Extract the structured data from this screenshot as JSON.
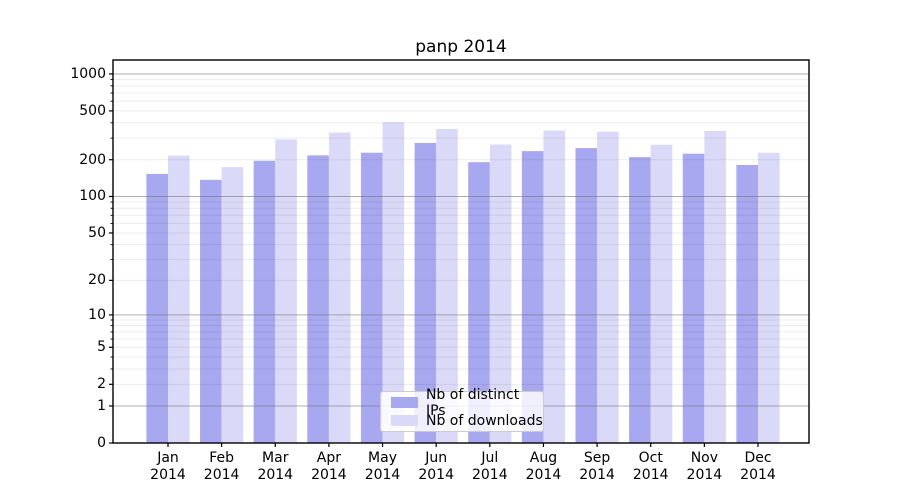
{
  "title": "panp 2014",
  "legend": {
    "items": [
      {
        "label": "Nb of distinct IPs"
      },
      {
        "label": "Nb of downloads"
      }
    ]
  },
  "colors": {
    "distinct_ips_bar": "#a8a8f0",
    "downloads_bar": "#dadaf8",
    "major_grid": "#808080",
    "minor_grid": "#e9e9e9",
    "axis": "#000000"
  },
  "chart_data": {
    "type": "bar",
    "title": "panp 2014",
    "categories": [
      "Jan 2014",
      "Feb 2014",
      "Mar 2014",
      "Apr 2014",
      "May 2014",
      "Jun 2014",
      "Jul 2014",
      "Aug 2014",
      "Sep 2014",
      "Oct 2014",
      "Nov 2014",
      "Dec 2014"
    ],
    "series": [
      {
        "name": "Nb of distinct IPs",
        "color": "#a8a8f0",
        "values": [
          153,
          137,
          196,
          217,
          228,
          274,
          191,
          235,
          249,
          210,
          224,
          181
        ]
      },
      {
        "name": "Nb of downloads",
        "color": "#dadaf8",
        "values": [
          216,
          174,
          293,
          333,
          405,
          356,
          266,
          346,
          339,
          265,
          343,
          228
        ]
      }
    ],
    "xlabel": "",
    "ylabel": "",
    "y_scale": "log1p",
    "y_ticks": [
      0,
      1,
      2,
      5,
      10,
      20,
      50,
      100,
      200,
      500,
      1000
    ],
    "ylim": [
      0,
      1300
    ],
    "grid": {
      "major_at": [
        1,
        10,
        100,
        1000
      ],
      "minor": "2-9 per decade",
      "shown": true
    },
    "legend_position": "lower center inside plot"
  }
}
